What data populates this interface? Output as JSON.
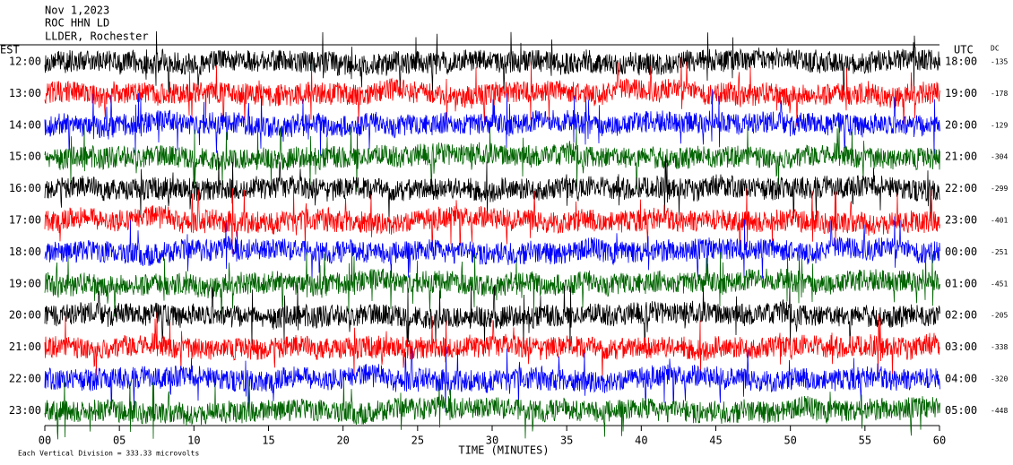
{
  "chart_data": {
    "type": "helicorder",
    "title_lines": [
      "Nov 1,2023",
      "ROC HHN LD",
      "LLDER, Rochester"
    ],
    "left_axis_label": "EST",
    "right_axis_label": "UTC",
    "dc_label": "DC",
    "xlabel": "TIME (MINUTES)",
    "footnote": "Each Vertical Division =  333.33 microvolts",
    "xlim": [
      0,
      60
    ],
    "xticks": [
      {
        "value": 0,
        "label": "00"
      },
      {
        "value": 5,
        "label": "05"
      },
      10,
      15,
      20,
      25,
      30,
      35,
      40,
      45,
      50,
      55,
      60
    ],
    "rows": [
      {
        "est": "12:00",
        "utc": "18:00",
        "dc": -135,
        "color": "#000000"
      },
      {
        "est": "13:00",
        "utc": "19:00",
        "dc": -178,
        "color": "#ff0000"
      },
      {
        "est": "14:00",
        "utc": "20:00",
        "dc": -129,
        "color": "#0000ff"
      },
      {
        "est": "15:00",
        "utc": "21:00",
        "dc": -304,
        "color": "#006400"
      },
      {
        "est": "16:00",
        "utc": "22:00",
        "dc": -299,
        "color": "#000000"
      },
      {
        "est": "17:00",
        "utc": "23:00",
        "dc": -401,
        "color": "#ff0000"
      },
      {
        "est": "18:00",
        "utc": "00:00",
        "dc": -251,
        "color": "#0000ff"
      },
      {
        "est": "19:00",
        "utc": "01:00",
        "dc": -451,
        "color": "#006400"
      },
      {
        "est": "20:00",
        "utc": "02:00",
        "dc": -205,
        "color": "#000000"
      },
      {
        "est": "21:00",
        "utc": "03:00",
        "dc": -338,
        "color": "#ff0000"
      },
      {
        "est": "22:00",
        "utc": "04:00",
        "dc": -320,
        "color": "#0000ff"
      },
      {
        "est": "23:00",
        "utc": "05:00",
        "dc": -448,
        "color": "#006400"
      }
    ]
  }
}
